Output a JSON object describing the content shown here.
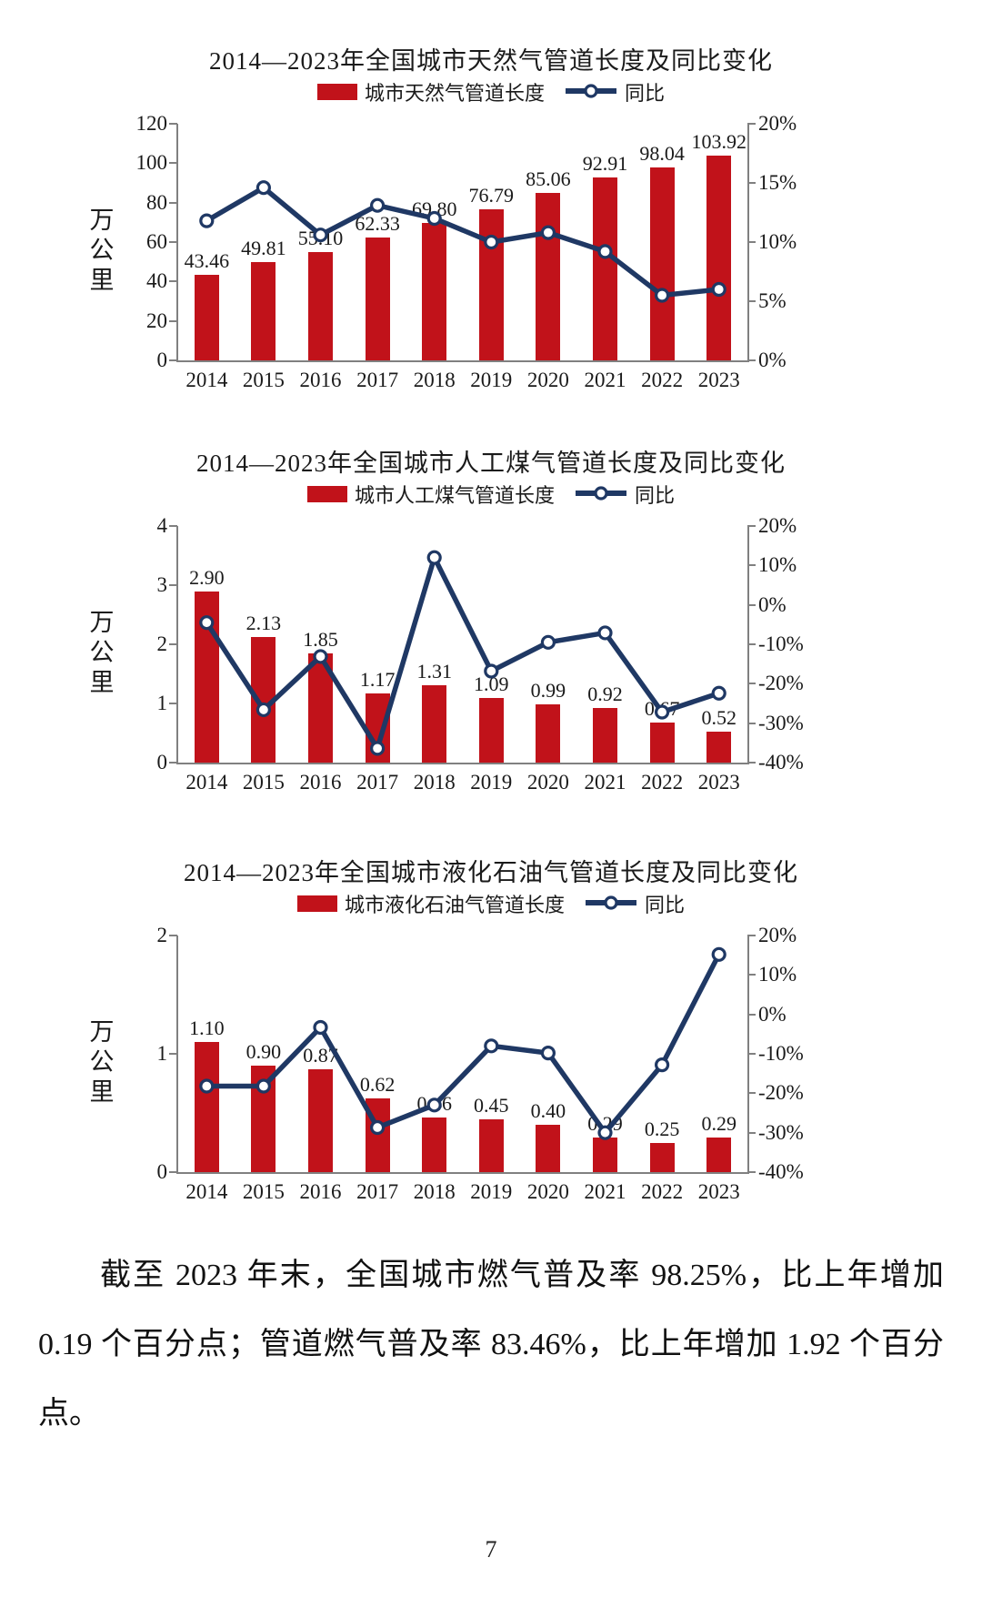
{
  "colors": {
    "bar_red": "#C1121A",
    "line_navy": "#1F3864",
    "axis_gray": "#808080",
    "text": "#1A1A1A"
  },
  "chart_data": [
    {
      "type": "bar+line",
      "title": "2014—2023年全国城市天然气管道长度及同比变化",
      "legend_bar": "城市天然气管道长度",
      "legend_line": "同比",
      "unit_label": "万公里",
      "categories": [
        "2014",
        "2015",
        "2016",
        "2017",
        "2018",
        "2019",
        "2020",
        "2021",
        "2022",
        "2023"
      ],
      "bar_values": [
        43.46,
        49.81,
        55.1,
        62.33,
        69.8,
        76.79,
        85.06,
        92.91,
        98.04,
        103.92
      ],
      "line_values_pct": [
        11.8,
        14.6,
        10.6,
        13.1,
        12.0,
        10.0,
        10.8,
        9.2,
        5.5,
        6.0
      ],
      "left_axis": {
        "min": 0,
        "max": 120,
        "ticks": [
          0,
          20,
          40,
          60,
          80,
          100,
          120
        ]
      },
      "right_axis": {
        "min": 0,
        "max": 20,
        "ticks": [
          0,
          5,
          10,
          15,
          20
        ],
        "suffix": "%"
      },
      "grid": false,
      "legend_position": "top"
    },
    {
      "type": "bar+line",
      "title": "2014—2023年全国城市人工煤气管道长度及同比变化",
      "legend_bar": "城市人工煤气管道长度",
      "legend_line": "同比",
      "unit_label": "万公里",
      "categories": [
        "2014",
        "2015",
        "2016",
        "2017",
        "2018",
        "2019",
        "2020",
        "2021",
        "2022",
        "2023"
      ],
      "bar_values": [
        2.9,
        2.13,
        1.85,
        1.17,
        1.31,
        1.09,
        0.99,
        0.92,
        0.67,
        0.52
      ],
      "line_values_pct": [
        -4.5,
        -26.6,
        -13.1,
        -36.4,
        12.0,
        -16.8,
        -9.5,
        -7.1,
        -27.2,
        -22.4
      ],
      "left_axis": {
        "min": 0,
        "max": 4,
        "ticks": [
          0,
          1,
          2,
          3,
          4
        ]
      },
      "right_axis": {
        "min": -40,
        "max": 20,
        "ticks": [
          20,
          10,
          0,
          -10,
          -20,
          -30,
          -40
        ],
        "suffix": "%"
      },
      "grid": false,
      "legend_position": "top"
    },
    {
      "type": "bar+line",
      "title": "2014—2023年全国城市液化石油气管道长度及同比变化",
      "legend_bar": "城市液化石油气管道长度",
      "legend_line": "同比",
      "unit_label": "万公里",
      "categories": [
        "2014",
        "2015",
        "2016",
        "2017",
        "2018",
        "2019",
        "2020",
        "2021",
        "2022",
        "2023"
      ],
      "bar_values": [
        1.1,
        0.9,
        0.87,
        0.62,
        0.46,
        0.45,
        0.4,
        0.29,
        0.25,
        0.29
      ],
      "line_values_pct": [
        -18.2,
        -18.2,
        -3.3,
        -28.7,
        -23.0,
        -8.0,
        -9.8,
        -30.0,
        -12.8,
        15.2
      ],
      "left_axis": {
        "min": 0,
        "max": 2,
        "ticks": [
          0,
          1,
          2
        ]
      },
      "right_axis": {
        "min": -40,
        "max": 20,
        "ticks": [
          20,
          10,
          0,
          -10,
          -20,
          -30,
          -40
        ],
        "suffix": "%"
      },
      "grid": false,
      "legend_position": "top"
    }
  ],
  "paragraph": "截至 2023 年末，全国城市燃气普及率 98.25%，比上年增加 0.19 个百分点；管道燃气普及率 83.46%，比上年增加 1.92 个百分点。",
  "page": {
    "number": "7"
  }
}
